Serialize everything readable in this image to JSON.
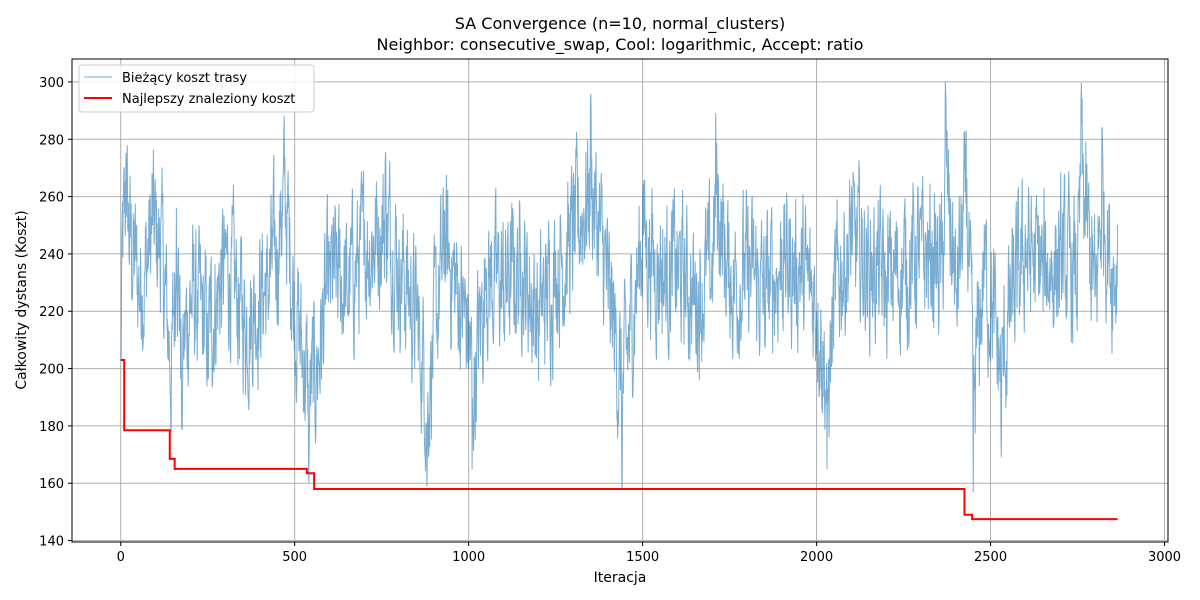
{
  "chart_data": {
    "type": "line",
    "title": "SA Convergence (n=10, normal_clusters)",
    "subtitle": "Neighbor: consecutive_swap, Cool: logarithmic, Accept: ratio",
    "xlabel": "Iteracja",
    "ylabel": "Całkowity dystans (Koszt)",
    "xlim": [
      -140,
      3010
    ],
    "ylim": [
      139.5,
      308
    ],
    "xticks": [
      0,
      500,
      1000,
      1500,
      2000,
      2500,
      3000
    ],
    "yticks": [
      140,
      160,
      180,
      200,
      220,
      240,
      260,
      280,
      300
    ],
    "grid": true,
    "legend_position": "top-left",
    "series": [
      {
        "name": "Bieżący koszt trasy",
        "color": "#1f77b4",
        "style": "noisy",
        "x_range": [
          0,
          2865
        ],
        "points": 2866,
        "keypoints": [
          [
            0,
            203
          ],
          [
            5,
            258
          ],
          [
            15,
            275
          ],
          [
            40,
            240
          ],
          [
            60,
            225
          ],
          [
            90,
            268
          ],
          [
            115,
            250
          ],
          [
            145,
            178
          ],
          [
            160,
            256
          ],
          [
            175,
            180
          ],
          [
            200,
            225
          ],
          [
            250,
            200
          ],
          [
            300,
            245
          ],
          [
            360,
            206
          ],
          [
            420,
            232
          ],
          [
            460,
            262
          ],
          [
            470,
            288
          ],
          [
            500,
            215
          ],
          [
            540,
            162
          ],
          [
            560,
            174
          ],
          [
            600,
            236
          ],
          [
            650,
            230
          ],
          [
            700,
            252
          ],
          [
            760,
            270
          ],
          [
            800,
            245
          ],
          [
            860,
            200
          ],
          [
            880,
            159
          ],
          [
            930,
            255
          ],
          [
            1000,
            200
          ],
          [
            1010,
            165
          ],
          [
            1050,
            235
          ],
          [
            1100,
            230
          ],
          [
            1150,
            240
          ],
          [
            1200,
            210
          ],
          [
            1250,
            240
          ],
          [
            1300,
            260
          ],
          [
            1350,
            293
          ],
          [
            1400,
            230
          ],
          [
            1440,
            162
          ],
          [
            1480,
            230
          ],
          [
            1500,
            260
          ],
          [
            1550,
            236
          ],
          [
            1600,
            240
          ],
          [
            1650,
            222
          ],
          [
            1700,
            240
          ],
          [
            1710,
            289
          ],
          [
            1750,
            230
          ],
          [
            1800,
            240
          ],
          [
            1850,
            224
          ],
          [
            1900,
            245
          ],
          [
            1950,
            238
          ],
          [
            2000,
            220
          ],
          [
            2030,
            165
          ],
          [
            2060,
            238
          ],
          [
            2100,
            254
          ],
          [
            2150,
            244
          ],
          [
            2200,
            232
          ],
          [
            2250,
            240
          ],
          [
            2300,
            252
          ],
          [
            2360,
            240
          ],
          [
            2370,
            300
          ],
          [
            2400,
            228
          ],
          [
            2430,
            283
          ],
          [
            2450,
            157
          ],
          [
            2480,
            240
          ],
          [
            2500,
            215
          ],
          [
            2530,
            175
          ],
          [
            2560,
            220
          ],
          [
            2600,
            250
          ],
          [
            2650,
            240
          ],
          [
            2700,
            245
          ],
          [
            2750,
            232
          ],
          [
            2760,
            294
          ],
          [
            2800,
            225
          ],
          [
            2820,
            284
          ],
          [
            2850,
            235
          ],
          [
            2865,
            250
          ]
        ],
        "mean_level": 228,
        "spread": 23,
        "min": 152,
        "max": 300
      },
      {
        "name": "Najlepszy znaleziony koszt",
        "color": "#ff0000",
        "style": "step",
        "x": [
          0,
          10,
          141,
          155,
          535,
          556,
          2425,
          2447,
          2865
        ],
        "values": [
          203,
          178.5,
          168.5,
          165,
          163.5,
          158,
          149,
          147.5,
          147.5
        ]
      }
    ]
  }
}
